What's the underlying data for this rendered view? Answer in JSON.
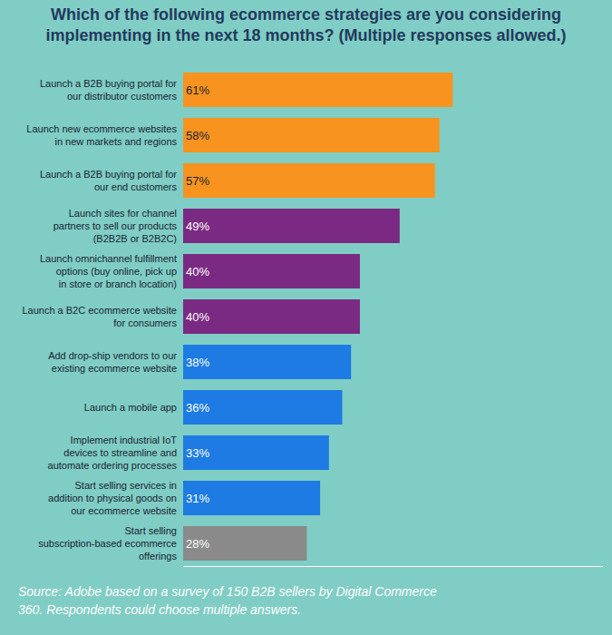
{
  "chart_data": {
    "type": "bar",
    "orientation": "horizontal",
    "title": "Which of the following ecommerce strategies are you considering implementing in the next 18 months? (Multiple responses allowed.)",
    "categories": [
      "Launch a B2B buying portal for our distributor customers",
      "Launch new ecommerce websites in new markets and regions",
      "Launch a B2B buying portal for our end customers",
      "Launch sites for channel partners to sell our products (B2B2B or B2B2C)",
      "Launch omnichannel fulfillment options (buy online, pick up in store or branch location)",
      "Launch a B2C ecommerce website for consumers",
      "Add drop-ship vendors to our existing ecommerce website",
      "Launch a mobile app",
      "Implement industrial IoT devices to streamline and automate ordering processes",
      "Start selling services in addition to physical goods on our ecommerce website",
      "Start selling subscription-based ecommerce offerings"
    ],
    "values": [
      61,
      58,
      57,
      49,
      40,
      40,
      38,
      36,
      33,
      31,
      28
    ],
    "value_labels": [
      "61%",
      "58%",
      "57%",
      "49%",
      "40%",
      "40%",
      "38%",
      "36%",
      "33%",
      "31%",
      "28%"
    ],
    "colors": [
      "#f7931e",
      "#f7931e",
      "#f7931e",
      "#7a2a82",
      "#7a2a82",
      "#7a2a82",
      "#1d7be3",
      "#1d7be3",
      "#1d7be3",
      "#1d7be3",
      "#8a8a8a"
    ],
    "data_labels": true,
    "xlim": [
      0,
      95
    ],
    "xticks": [],
    "tick_labels": "y",
    "grid": false,
    "annotations": [
      "Source: Adobe based on a survey of 150 B2B sellers by Digital Commerce 360. Respondents could choose multiple answers."
    ]
  }
}
